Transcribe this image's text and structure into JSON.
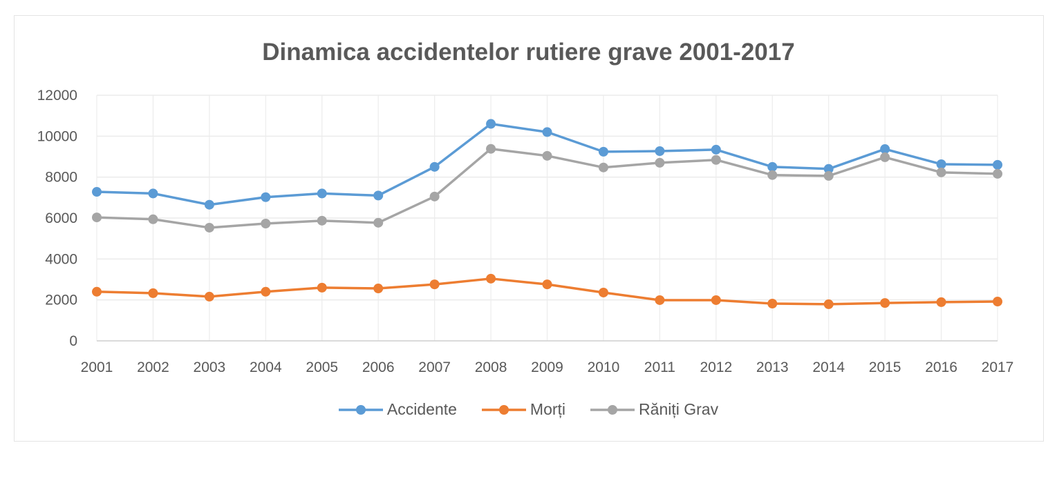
{
  "chart_data": {
    "type": "line",
    "title": "Dinamica accidentelor rutiere grave 2001-2017",
    "xlabel": "",
    "ylabel": "",
    "x": [
      "2001",
      "2002",
      "2003",
      "2004",
      "2005",
      "2006",
      "2007",
      "2008",
      "2009",
      "2010",
      "2011",
      "2012",
      "2013",
      "2014",
      "2015",
      "2016",
      "2017"
    ],
    "ylim": [
      0,
      12000
    ],
    "yticks": [
      "0",
      "2000",
      "4000",
      "6000",
      "8000",
      "10000",
      "12000"
    ],
    "grid": true,
    "legend_position": "bottom",
    "series": [
      {
        "name": "Accidente",
        "color": "#5b9bd5",
        "values": [
          7280,
          7200,
          6650,
          7020,
          7200,
          7100,
          8500,
          10600,
          10200,
          9240,
          9270,
          9340,
          8500,
          8400,
          9370,
          8630,
          8600
        ]
      },
      {
        "name": "Morți",
        "color": "#ed7d31",
        "values": [
          2400,
          2330,
          2160,
          2400,
          2600,
          2560,
          2760,
          3040,
          2760,
          2360,
          1990,
          1990,
          1820,
          1790,
          1850,
          1890,
          1920
        ]
      },
      {
        "name": "Răniți Grav",
        "color": "#a5a5a5",
        "values": [
          6030,
          5940,
          5530,
          5730,
          5870,
          5770,
          7050,
          9380,
          9040,
          8470,
          8700,
          8840,
          8100,
          8060,
          8970,
          8230,
          8160
        ]
      }
    ]
  }
}
